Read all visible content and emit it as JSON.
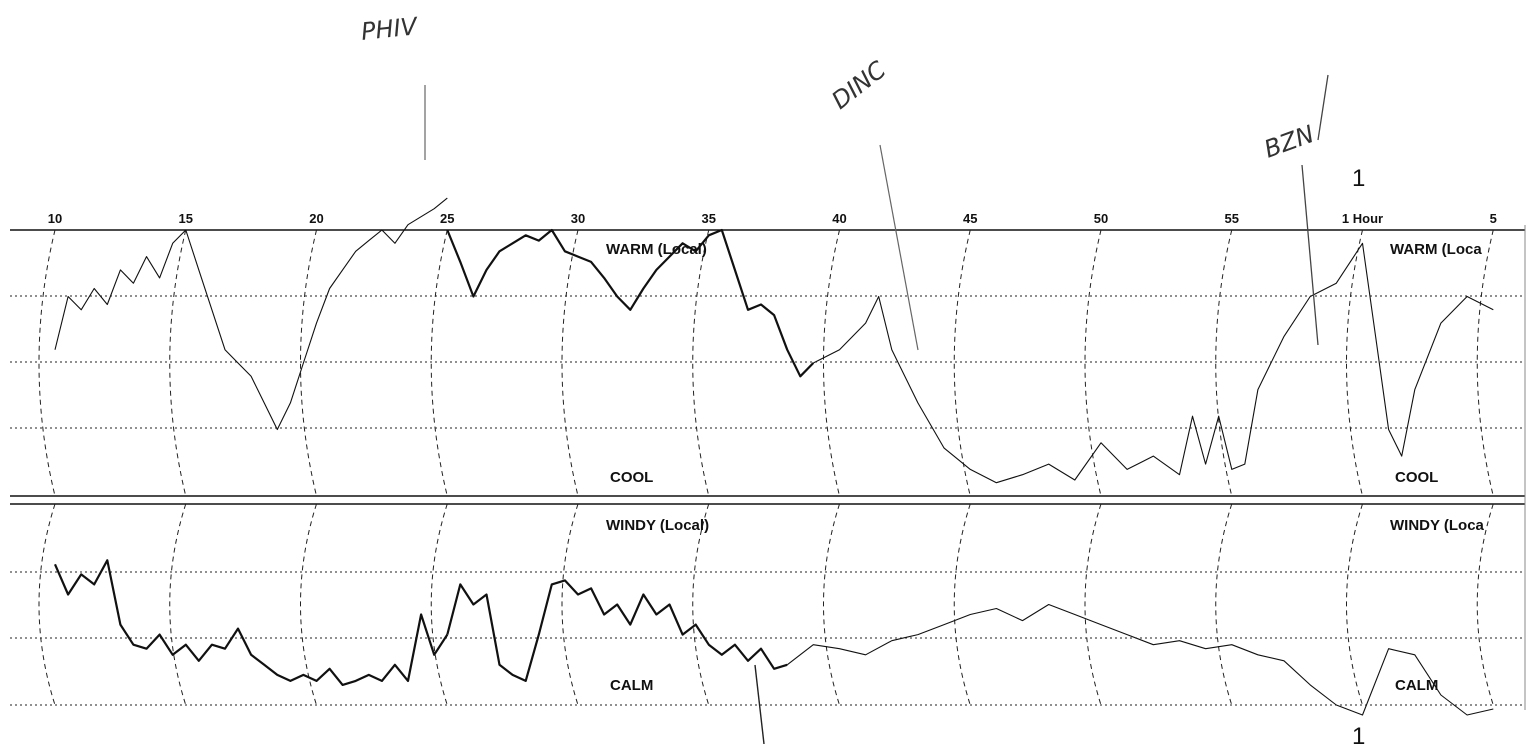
{
  "chart_data": {
    "type": "line",
    "x_ticks": [
      "10",
      "15",
      "20",
      "25",
      "30",
      "35",
      "40",
      "45",
      "50",
      "55",
      "1 Hour",
      "5"
    ],
    "panels": [
      {
        "top_label": "WARM (Local)",
        "bottom_label": "COOL",
        "repeat_top_label": "WARM (Loca",
        "repeat_bottom_label": "COOL"
      },
      {
        "top_label": "WINDY (Local)",
        "bottom_label": "CALM",
        "repeat_top_label": "WINDY (Loca",
        "repeat_bottom_label": "CALM"
      }
    ],
    "annotations": {
      "handwritten": [
        "PHIV",
        "DINC",
        "BZN"
      ],
      "printed": [
        "1",
        "1"
      ]
    },
    "grid": "dotted",
    "x_unit_hint": "minutes",
    "series": [
      {
        "panel": 0,
        "style": "thin",
        "x": [
          10,
          10.5,
          11,
          11.5,
          12,
          12.5,
          13,
          13.5,
          14,
          14.5,
          15,
          15.5,
          16,
          16.5,
          17,
          17.5,
          18,
          18.5,
          19,
          19.5,
          20,
          20.5,
          21,
          21.5,
          22,
          22.5,
          23,
          23.5,
          24,
          24.5,
          25
        ],
        "y": [
          0.55,
          0.75,
          0.7,
          0.78,
          0.72,
          0.85,
          0.8,
          0.9,
          0.82,
          0.95,
          1.0,
          0.85,
          0.7,
          0.55,
          0.5,
          0.45,
          0.35,
          0.25,
          0.35,
          0.5,
          0.65,
          0.78,
          0.85,
          0.92,
          0.96,
          1.0,
          0.95,
          1.02,
          1.05,
          1.08,
          1.12
        ]
      },
      {
        "panel": 0,
        "style": "bold",
        "x": [
          25,
          25.5,
          26,
          26.5,
          27,
          27.5,
          28,
          28.5,
          29,
          29.5,
          30,
          30.5,
          31,
          31.5,
          32,
          32.5,
          33,
          33.5,
          34,
          34.5,
          35,
          35.5,
          36,
          36.5,
          37,
          37.5,
          38,
          38.5,
          39
        ],
        "y": [
          1.0,
          0.88,
          0.75,
          0.85,
          0.92,
          0.95,
          0.98,
          0.96,
          1.0,
          0.92,
          0.9,
          0.88,
          0.82,
          0.75,
          0.7,
          0.78,
          0.85,
          0.9,
          0.95,
          0.92,
          0.98,
          1.0,
          0.85,
          0.7,
          0.72,
          0.68,
          0.55,
          0.45,
          0.5
        ]
      },
      {
        "panel": 0,
        "style": "thin",
        "x": [
          39,
          40,
          41,
          41.5,
          42,
          43,
          44,
          45,
          46,
          47,
          48,
          49,
          50,
          51,
          52,
          53,
          53.5,
          54,
          54.5,
          55,
          55.5,
          56,
          57,
          58,
          59,
          60,
          60.5,
          61,
          61.5,
          62,
          63,
          64,
          65
        ],
        "y": [
          0.5,
          0.55,
          0.65,
          0.75,
          0.55,
          0.35,
          0.18,
          0.1,
          0.05,
          0.08,
          0.12,
          0.06,
          0.2,
          0.1,
          0.15,
          0.08,
          0.3,
          0.12,
          0.3,
          0.1,
          0.12,
          0.4,
          0.6,
          0.75,
          0.8,
          0.95,
          0.6,
          0.25,
          0.15,
          0.4,
          0.65,
          0.75,
          0.7
        ]
      },
      {
        "panel": 1,
        "style": "bold",
        "x": [
          10,
          10.5,
          11,
          11.5,
          12,
          12.5,
          13,
          13.5,
          14,
          14.5,
          15,
          15.5,
          16,
          16.5,
          17,
          17.5,
          18,
          18.5,
          19,
          19.5,
          20,
          20.5,
          21,
          21.5,
          22,
          22.5,
          23,
          23.5,
          24,
          24.5,
          25
        ],
        "y": [
          0.7,
          0.55,
          0.65,
          0.6,
          0.72,
          0.4,
          0.3,
          0.28,
          0.35,
          0.25,
          0.3,
          0.22,
          0.3,
          0.28,
          0.38,
          0.25,
          0.2,
          0.15,
          0.12,
          0.15,
          0.12,
          0.18,
          0.1,
          0.12,
          0.15,
          0.12,
          0.2,
          0.12,
          0.45,
          0.25,
          0.35
        ]
      },
      {
        "panel": 1,
        "style": "bold",
        "x": [
          25,
          25.5,
          26,
          26.5,
          27,
          27.5,
          28,
          28.5,
          29,
          29.5,
          30,
          30.5,
          31,
          31.5,
          32,
          32.5,
          33,
          33.5,
          34,
          34.5,
          35,
          35.5,
          36,
          36.5,
          37,
          37.5,
          38
        ],
        "y": [
          0.35,
          0.6,
          0.5,
          0.55,
          0.2,
          0.15,
          0.12,
          0.35,
          0.6,
          0.62,
          0.55,
          0.58,
          0.45,
          0.5,
          0.4,
          0.55,
          0.45,
          0.5,
          0.35,
          0.4,
          0.3,
          0.25,
          0.3,
          0.22,
          0.28,
          0.18,
          0.2
        ]
      },
      {
        "panel": 1,
        "style": "thin",
        "x": [
          38,
          39,
          40,
          41,
          42,
          43,
          44,
          45,
          46,
          47,
          48,
          49,
          50,
          51,
          52,
          53,
          54,
          55,
          56,
          57,
          58,
          59,
          60,
          61,
          62,
          63,
          64,
          65
        ],
        "y": [
          0.2,
          0.3,
          0.28,
          0.25,
          0.32,
          0.35,
          0.4,
          0.45,
          0.48,
          0.42,
          0.5,
          0.45,
          0.4,
          0.35,
          0.3,
          0.32,
          0.28,
          0.3,
          0.25,
          0.22,
          0.1,
          0.0,
          -0.05,
          0.28,
          0.25,
          0.05,
          -0.05,
          -0.02
        ]
      }
    ]
  }
}
